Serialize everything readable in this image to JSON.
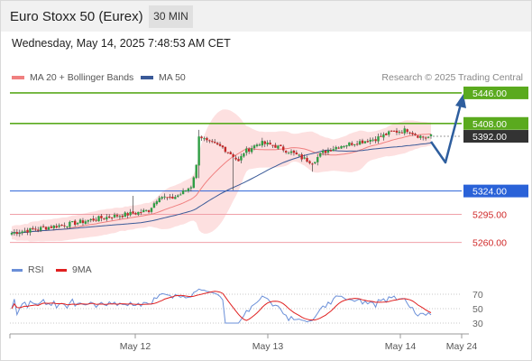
{
  "header": {
    "title": "Euro Stoxx 50 (Eurex)",
    "timeframe": "30 MIN"
  },
  "datetime": "Wednesday, May 14, 2025 7:48:53 AM CET",
  "legend": {
    "ma20": {
      "label": "MA 20 + Bollinger Bands",
      "color": "#f08080"
    },
    "ma50": {
      "label": "MA 50",
      "color": "#3a5a98"
    }
  },
  "credit": "Research © 2025 Trading Central",
  "rsi_legend": {
    "rsi": {
      "label": "RSI",
      "color": "#6a8fd8"
    },
    "ma9": {
      "label": "9MA",
      "color": "#e02020"
    }
  },
  "chart_data": [
    {
      "type": "line",
      "subtype": "candlestick-price",
      "instrument": "Euro Stoxx 50 (Eurex)",
      "ylim": [
        5245,
        5456
      ],
      "x_ticks": [
        "May 12",
        "May 13",
        "May 14",
        "May 24"
      ],
      "current_price": {
        "value": "5392.00",
        "color": "#333333"
      },
      "levels": [
        {
          "value": "5446.00",
          "kind": "resistance",
          "color": "#5aaa1e",
          "style": "solid-tag"
        },
        {
          "value": "5408.00",
          "kind": "resistance",
          "color": "#5aaa1e",
          "style": "solid-tag"
        },
        {
          "value": "5324.00",
          "kind": "pivot",
          "color": "#2a62d8",
          "style": "solid-tag"
        },
        {
          "value": "5295.00",
          "kind": "support",
          "color": "#f0a0a8",
          "style": "text"
        },
        {
          "value": "5260.00",
          "kind": "support",
          "color": "#f0a0a8",
          "style": "text"
        }
      ],
      "forecast_arrow": {
        "direction": "down-then-up",
        "color": "#2e5e9e"
      }
    },
    {
      "type": "line",
      "subtype": "rsi",
      "ylim": [
        20,
        80
      ],
      "y_ticks": [
        "70",
        "50",
        "30"
      ],
      "series": [
        {
          "name": "RSI",
          "color": "#6a8fd8"
        },
        {
          "name": "9MA",
          "color": "#e02020"
        }
      ]
    }
  ]
}
